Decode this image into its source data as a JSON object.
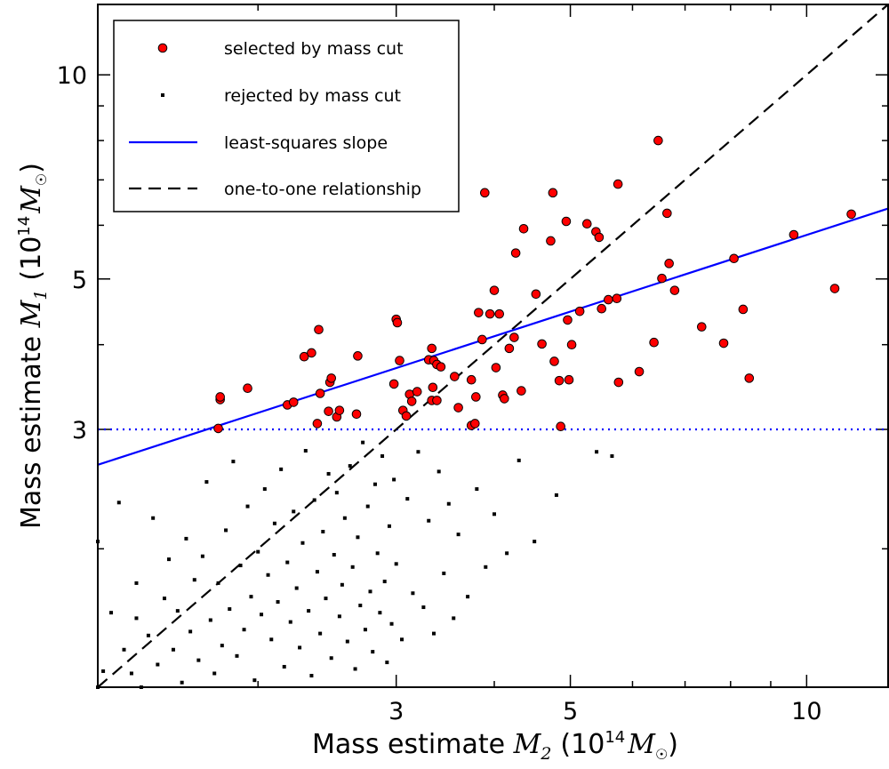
{
  "chart_data": {
    "type": "scatter",
    "xscale": "log",
    "yscale": "log",
    "xlim": [
      1.25,
      12.7
    ],
    "ylim": [
      1.25,
      12.7
    ],
    "xlabel": {
      "prefix": "Mass estimate ",
      "symbol": "M",
      "subscript": "2",
      "unit_open": "(10",
      "unit_exp": "14",
      "unit_symbol": "M",
      "unit_sub": "☉",
      "unit_close": ")"
    },
    "ylabel": {
      "prefix": "Mass estimate ",
      "symbol": "M",
      "subscript": "1",
      "unit_open": "(10",
      "unit_exp": "14",
      "unit_symbol": "M",
      "unit_sub": "☉",
      "unit_close": ")"
    },
    "xtick_labels": [
      {
        "value": 3,
        "label": "3"
      },
      {
        "value": 5,
        "label": "5"
      },
      {
        "value": 10,
        "label": "10"
      }
    ],
    "ytick_labels": [
      {
        "value": 3,
        "label": "3"
      },
      {
        "value": 5,
        "label": "5"
      },
      {
        "value": 10,
        "label": "10"
      }
    ],
    "minor_ticks": [
      2,
      3,
      4,
      5,
      6,
      7,
      8,
      9,
      10
    ],
    "cut_value": 3.0,
    "legend": {
      "placement": "top-left",
      "entries": [
        {
          "key": "selected",
          "label": "selected by mass cut",
          "marker": "circle",
          "color": "#ff0000"
        },
        {
          "key": "rejected",
          "label": "rejected by mass cut",
          "marker": "square",
          "color": "#000000"
        },
        {
          "key": "fit",
          "label": "least-squares slope",
          "marker": "line",
          "color": "#0000ff"
        },
        {
          "key": "one_to_one",
          "label": "one-to-one relationship",
          "marker": "dashed",
          "color": "#000000"
        }
      ]
    },
    "lines": {
      "fit": {
        "color": "#0000ff",
        "points": [
          [
            1.25,
            2.66
          ],
          [
            12.7,
            6.35
          ]
        ]
      },
      "one_to_one": {
        "color": "#000000",
        "points": [
          [
            1.25,
            1.25
          ],
          [
            12.7,
            12.7
          ]
        ]
      },
      "cut": {
        "color": "#0000ff",
        "y": 3.0,
        "x_range": [
          1.25,
          12.7
        ]
      }
    },
    "series": [
      {
        "name": "selected by mass cut",
        "color": "#ff0000",
        "points": [
          [
            1.78,
            3.01
          ],
          [
            1.79,
            3.32
          ],
          [
            1.79,
            3.35
          ],
          [
            1.94,
            3.45
          ],
          [
            2.18,
            3.26
          ],
          [
            2.22,
            3.29
          ],
          [
            2.29,
            3.84
          ],
          [
            2.34,
            3.89
          ],
          [
            2.38,
            3.06
          ],
          [
            2.39,
            4.21
          ],
          [
            2.4,
            3.39
          ],
          [
            2.46,
            3.19
          ],
          [
            2.47,
            3.52
          ],
          [
            2.48,
            3.57
          ],
          [
            2.52,
            3.13
          ],
          [
            2.54,
            3.2
          ],
          [
            2.67,
            3.16
          ],
          [
            2.68,
            3.85
          ],
          [
            2.98,
            3.5
          ],
          [
            3.0,
            4.36
          ],
          [
            3.01,
            4.31
          ],
          [
            3.03,
            3.79
          ],
          [
            3.06,
            3.2
          ],
          [
            3.09,
            3.14
          ],
          [
            3.12,
            3.38
          ],
          [
            3.14,
            3.3
          ],
          [
            3.19,
            3.41
          ],
          [
            3.3,
            3.8
          ],
          [
            3.33,
            3.95
          ],
          [
            3.33,
            3.31
          ],
          [
            3.34,
            3.46
          ],
          [
            3.35,
            3.79
          ],
          [
            3.38,
            3.74
          ],
          [
            3.38,
            3.31
          ],
          [
            3.42,
            3.71
          ],
          [
            3.56,
            3.59
          ],
          [
            3.6,
            3.23
          ],
          [
            3.74,
            3.55
          ],
          [
            3.74,
            3.04
          ],
          [
            3.78,
            3.06
          ],
          [
            3.79,
            3.35
          ],
          [
            3.82,
            4.46
          ],
          [
            3.86,
            4.07
          ],
          [
            3.89,
            6.7
          ],
          [
            3.95,
            4.44
          ],
          [
            4.0,
            4.81
          ],
          [
            4.02,
            3.7
          ],
          [
            4.06,
            4.44
          ],
          [
            4.1,
            3.37
          ],
          [
            4.12,
            3.33
          ],
          [
            4.18,
            3.95
          ],
          [
            4.24,
            4.1
          ],
          [
            4.26,
            5.46
          ],
          [
            4.33,
            3.42
          ],
          [
            4.36,
            5.93
          ],
          [
            4.52,
            4.75
          ],
          [
            4.6,
            4.01
          ],
          [
            4.72,
            5.69
          ],
          [
            4.75,
            6.7
          ],
          [
            4.77,
            3.78
          ],
          [
            4.84,
            3.54
          ],
          [
            4.86,
            3.03
          ],
          [
            4.94,
            6.08
          ],
          [
            4.96,
            4.35
          ],
          [
            4.98,
            3.55
          ],
          [
            5.02,
            4.0
          ],
          [
            5.14,
            4.48
          ],
          [
            5.25,
            6.03
          ],
          [
            5.39,
            5.87
          ],
          [
            5.44,
            5.76
          ],
          [
            5.48,
            4.52
          ],
          [
            5.59,
            4.66
          ],
          [
            5.75,
            6.9
          ],
          [
            5.73,
            4.68
          ],
          [
            5.76,
            3.52
          ],
          [
            6.12,
            3.65
          ],
          [
            6.39,
            4.03
          ],
          [
            6.47,
            8.0
          ],
          [
            6.54,
            5.01
          ],
          [
            6.64,
            6.25
          ],
          [
            6.68,
            5.27
          ],
          [
            6.79,
            4.81
          ],
          [
            7.35,
            4.25
          ],
          [
            7.84,
            4.02
          ],
          [
            8.08,
            5.36
          ],
          [
            8.3,
            4.51
          ],
          [
            8.45,
            3.57
          ],
          [
            9.63,
            5.81
          ],
          [
            10.86,
            4.84
          ],
          [
            11.4,
            6.23
          ]
        ]
      },
      {
        "name": "rejected by mass cut",
        "color": "#000000",
        "points": [
          [
            1.25,
            1.25
          ],
          [
            1.25,
            2.05
          ],
          [
            1.27,
            1.32
          ],
          [
            1.3,
            1.61
          ],
          [
            1.33,
            2.34
          ],
          [
            1.35,
            1.42
          ],
          [
            1.38,
            1.31
          ],
          [
            1.4,
            1.58
          ],
          [
            1.4,
            1.78
          ],
          [
            1.42,
            1.25
          ],
          [
            1.45,
            1.49
          ],
          [
            1.47,
            2.22
          ],
          [
            1.49,
            1.35
          ],
          [
            1.52,
            1.69
          ],
          [
            1.54,
            1.93
          ],
          [
            1.56,
            1.42
          ],
          [
            1.58,
            1.62
          ],
          [
            1.6,
            1.27
          ],
          [
            1.62,
            2.07
          ],
          [
            1.64,
            1.51
          ],
          [
            1.66,
            1.8
          ],
          [
            1.68,
            1.37
          ],
          [
            1.7,
            1.95
          ],
          [
            1.72,
            2.51
          ],
          [
            1.74,
            1.57
          ],
          [
            1.76,
            1.31
          ],
          [
            1.78,
            1.78
          ],
          [
            1.8,
            1.44
          ],
          [
            1.82,
            2.13
          ],
          [
            1.84,
            1.63
          ],
          [
            1.86,
            2.69
          ],
          [
            1.88,
            1.39
          ],
          [
            1.9,
            1.89
          ],
          [
            1.92,
            1.52
          ],
          [
            1.94,
            2.31
          ],
          [
            1.96,
            1.7
          ],
          [
            1.98,
            1.28
          ],
          [
            2.0,
            1.98
          ],
          [
            2.02,
            1.6
          ],
          [
            2.04,
            2.45
          ],
          [
            2.06,
            1.83
          ],
          [
            2.08,
            1.47
          ],
          [
            2.1,
            2.18
          ],
          [
            2.12,
            1.67
          ],
          [
            2.14,
            2.62
          ],
          [
            2.16,
            1.34
          ],
          [
            2.18,
            1.91
          ],
          [
            2.2,
            1.56
          ],
          [
            2.22,
            2.27
          ],
          [
            2.24,
            1.75
          ],
          [
            2.26,
            1.43
          ],
          [
            2.28,
            2.04
          ],
          [
            2.3,
            2.79
          ],
          [
            2.32,
            1.62
          ],
          [
            2.34,
            1.3
          ],
          [
            2.36,
            2.36
          ],
          [
            2.38,
            1.85
          ],
          [
            2.4,
            1.5
          ],
          [
            2.42,
            2.12
          ],
          [
            2.44,
            1.69
          ],
          [
            2.46,
            2.58
          ],
          [
            2.48,
            1.38
          ],
          [
            2.5,
            1.96
          ],
          [
            2.52,
            2.42
          ],
          [
            2.54,
            1.59
          ],
          [
            2.56,
            1.77
          ],
          [
            2.58,
            2.22
          ],
          [
            2.6,
            1.46
          ],
          [
            2.62,
            2.65
          ],
          [
            2.64,
            1.88
          ],
          [
            2.66,
            1.33
          ],
          [
            2.68,
            2.08
          ],
          [
            2.7,
            1.65
          ],
          [
            2.72,
            2.87
          ],
          [
            2.74,
            1.52
          ],
          [
            2.76,
            2.31
          ],
          [
            2.78,
            1.73
          ],
          [
            2.8,
            1.41
          ],
          [
            2.82,
            2.49
          ],
          [
            2.84,
            1.97
          ],
          [
            2.86,
            1.61
          ],
          [
            2.88,
            2.74
          ],
          [
            2.9,
            1.79
          ],
          [
            2.92,
            1.36
          ],
          [
            2.94,
            2.16
          ],
          [
            2.96,
            1.55
          ],
          [
            2.98,
            2.53
          ],
          [
            3.0,
            1.9
          ],
          [
            3.05,
            1.47
          ],
          [
            3.1,
            2.37
          ],
          [
            3.15,
            1.72
          ],
          [
            3.2,
            2.78
          ],
          [
            3.25,
            1.64
          ],
          [
            3.3,
            2.2
          ],
          [
            3.35,
            1.5
          ],
          [
            3.4,
            2.6
          ],
          [
            3.45,
            1.84
          ],
          [
            3.5,
            2.33
          ],
          [
            3.55,
            1.58
          ],
          [
            3.6,
            2.1
          ],
          [
            3.7,
            1.7
          ],
          [
            3.8,
            2.45
          ],
          [
            3.9,
            1.88
          ],
          [
            4.0,
            2.25
          ],
          [
            4.15,
            1.97
          ],
          [
            4.3,
            2.7
          ],
          [
            4.5,
            2.05
          ],
          [
            4.8,
            2.4
          ],
          [
            5.4,
            2.78
          ],
          [
            5.65,
            2.74
          ]
        ]
      }
    ]
  }
}
